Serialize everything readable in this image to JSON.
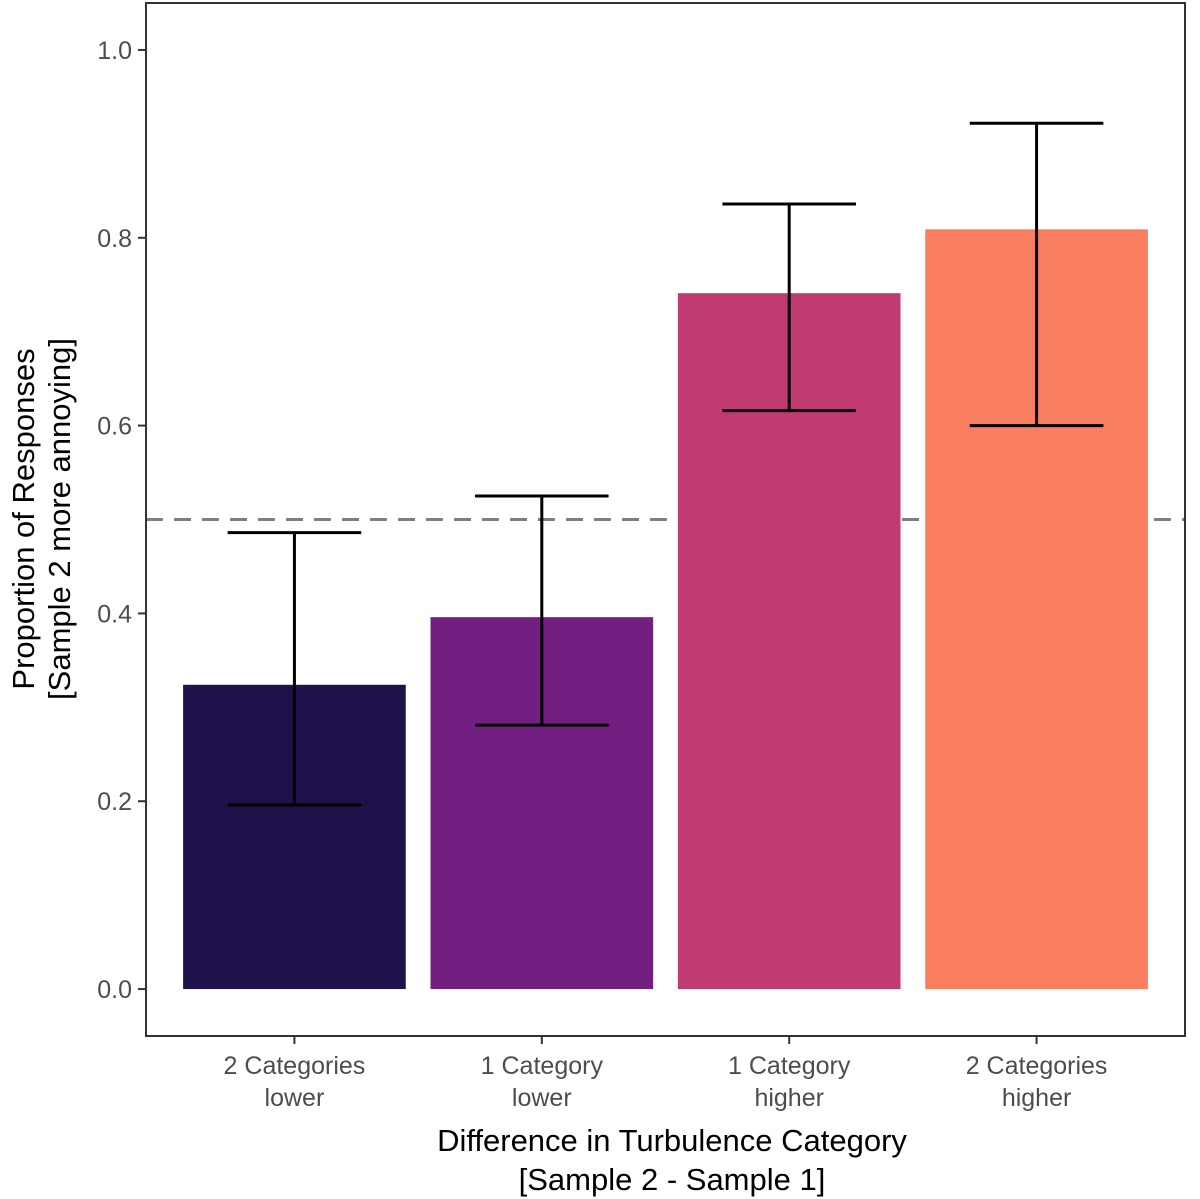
{
  "chart_data": {
    "type": "bar",
    "title": "",
    "xlabel": [
      "Difference in Turbulence Category",
      "[Sample 2 - Sample 1]"
    ],
    "ylabel": [
      "Proportion of Responses",
      "[Sample 2 more annoying]"
    ],
    "categories": [
      [
        "2 Categories",
        "lower"
      ],
      [
        "1 Category",
        "lower"
      ],
      [
        "1 Category",
        "higher"
      ],
      [
        "2 Categories",
        "higher"
      ]
    ],
    "values": [
      0.324,
      0.396,
      0.741,
      0.809
    ],
    "error_lower": [
      0.196,
      0.281,
      0.616,
      0.6
    ],
    "error_upper": [
      0.486,
      0.525,
      0.836,
      0.922
    ],
    "colors": [
      "#1f1149",
      "#721f81",
      "#c13b73",
      "#f97d5f"
    ],
    "reference_line": {
      "y": 0.5,
      "style": "dashed",
      "color": "#808080"
    },
    "yticks": [
      "0.0",
      "0.2",
      "0.4",
      "0.6",
      "0.8",
      "1.0"
    ],
    "ylim": [
      -0.05,
      1.05
    ],
    "grid": false,
    "legend": "none"
  }
}
